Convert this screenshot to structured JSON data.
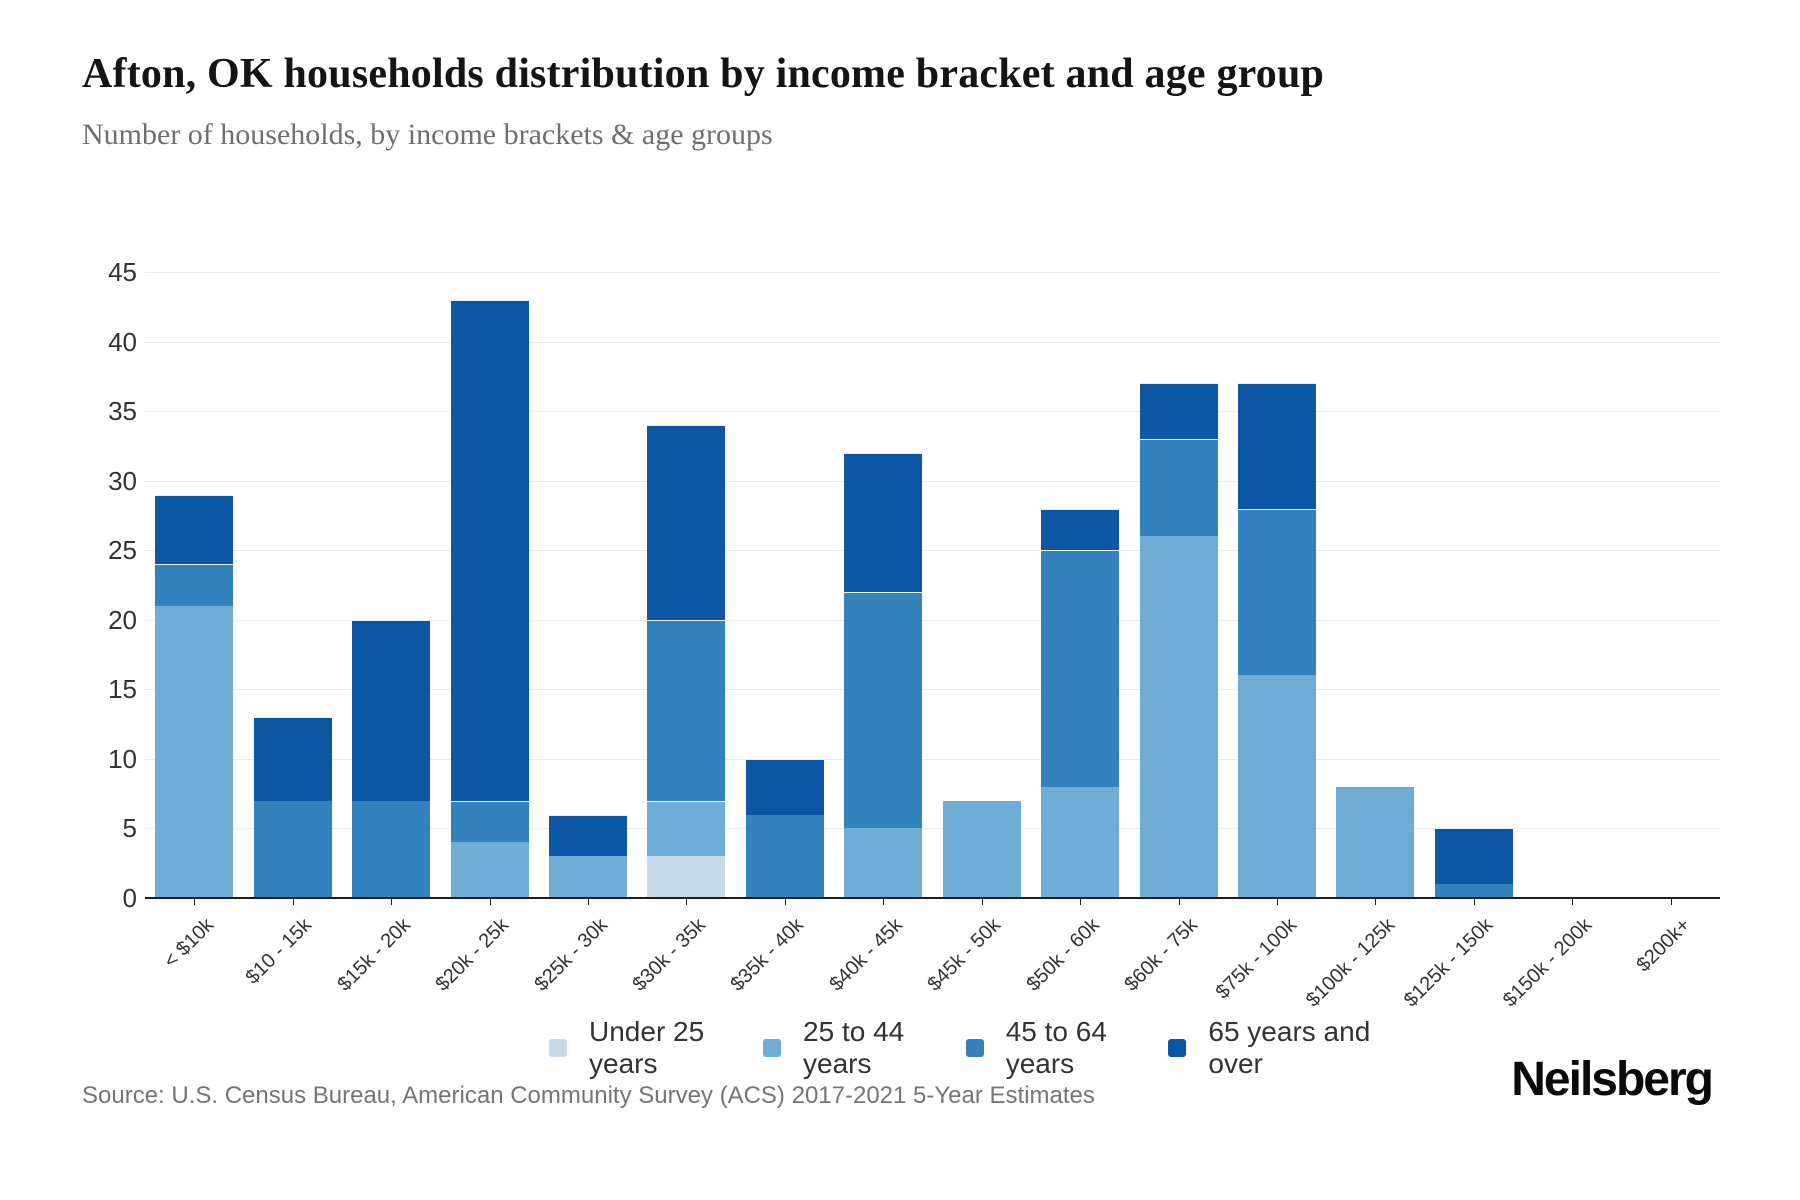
{
  "header": {
    "title": "Afton, OK households distribution by income bracket and age group",
    "subtitle": "Number of households, by income brackets & age groups"
  },
  "footer": {
    "source": "Source: U.S. Census Bureau, American Community Survey (ACS) 2017-2021 5-Year Estimates",
    "logo": "Neilsberg"
  },
  "chart_data": {
    "type": "bar",
    "stacked": true,
    "title": "Afton, OK households distribution by income bracket and age group",
    "subtitle": "Number of households, by income brackets & age groups",
    "xlabel": "",
    "ylabel": "",
    "ylim": [
      0,
      45
    ],
    "yticks": [
      0,
      5,
      10,
      15,
      20,
      25,
      30,
      35,
      40,
      45
    ],
    "grid": "horizontal",
    "legend_position": "bottom-center",
    "categories": [
      "< $10k",
      "$10 - 15k",
      "$15k - 20k",
      "$20k - 25k",
      "$25k - 30k",
      "$30k - 35k",
      "$35k - 40k",
      "$40k - 45k",
      "$45k - 50k",
      "$50k - 60k",
      "$60k - 75k",
      "$75k - 100k",
      "$100k - 125k",
      "$125k - 150k",
      "$150k - 200k",
      "$200k+"
    ],
    "series": [
      {
        "name": "Under 25 years",
        "color": "#c7daea",
        "values": [
          0,
          0,
          0,
          0,
          0,
          3,
          0,
          0,
          0,
          0,
          0,
          0,
          0,
          0,
          0,
          0
        ]
      },
      {
        "name": "25 to 44 years",
        "color": "#6fadd6",
        "values": [
          21,
          0,
          0,
          4,
          3,
          4,
          0,
          5,
          7,
          8,
          26,
          16,
          8,
          0,
          0,
          0
        ]
      },
      {
        "name": "45 to 64 years",
        "color": "#3381bd",
        "values": [
          3,
          7,
          7,
          3,
          0,
          13,
          6,
          17,
          0,
          17,
          7,
          12,
          0,
          1,
          0,
          0
        ]
      },
      {
        "name": "65 years and over",
        "color": "#0d56a3",
        "values": [
          5,
          6,
          13,
          36,
          3,
          14,
          4,
          10,
          0,
          3,
          4,
          9,
          0,
          4,
          0,
          0
        ]
      }
    ],
    "totals": [
      29,
      13,
      20,
      43,
      6,
      34,
      10,
      32,
      7,
      28,
      37,
      37,
      8,
      5,
      0,
      0
    ],
    "axis_color": "#1d1d1d",
    "grid_color": "#ebebeb",
    "tick_label_color": "#333333"
  }
}
